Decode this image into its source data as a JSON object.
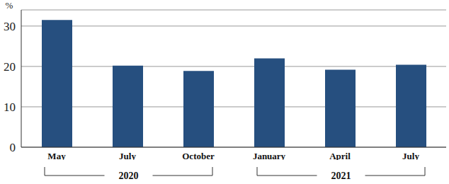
{
  "chart_data": {
    "type": "bar",
    "y_label": "%",
    "categories": [
      "May",
      "July",
      "October",
      "January",
      "April",
      "July"
    ],
    "values": [
      31.5,
      20.2,
      18.9,
      22.0,
      19.2,
      20.4
    ],
    "color": "#264f7f",
    "ylim": [
      0,
      34
    ],
    "yticks": [
      0,
      10,
      20,
      30
    ],
    "grid": true,
    "groups": [
      {
        "label": "2020",
        "categories": [
          "May",
          "July",
          "October"
        ]
      },
      {
        "label": "2021",
        "categories": [
          "January",
          "April",
          "July"
        ]
      }
    ]
  }
}
